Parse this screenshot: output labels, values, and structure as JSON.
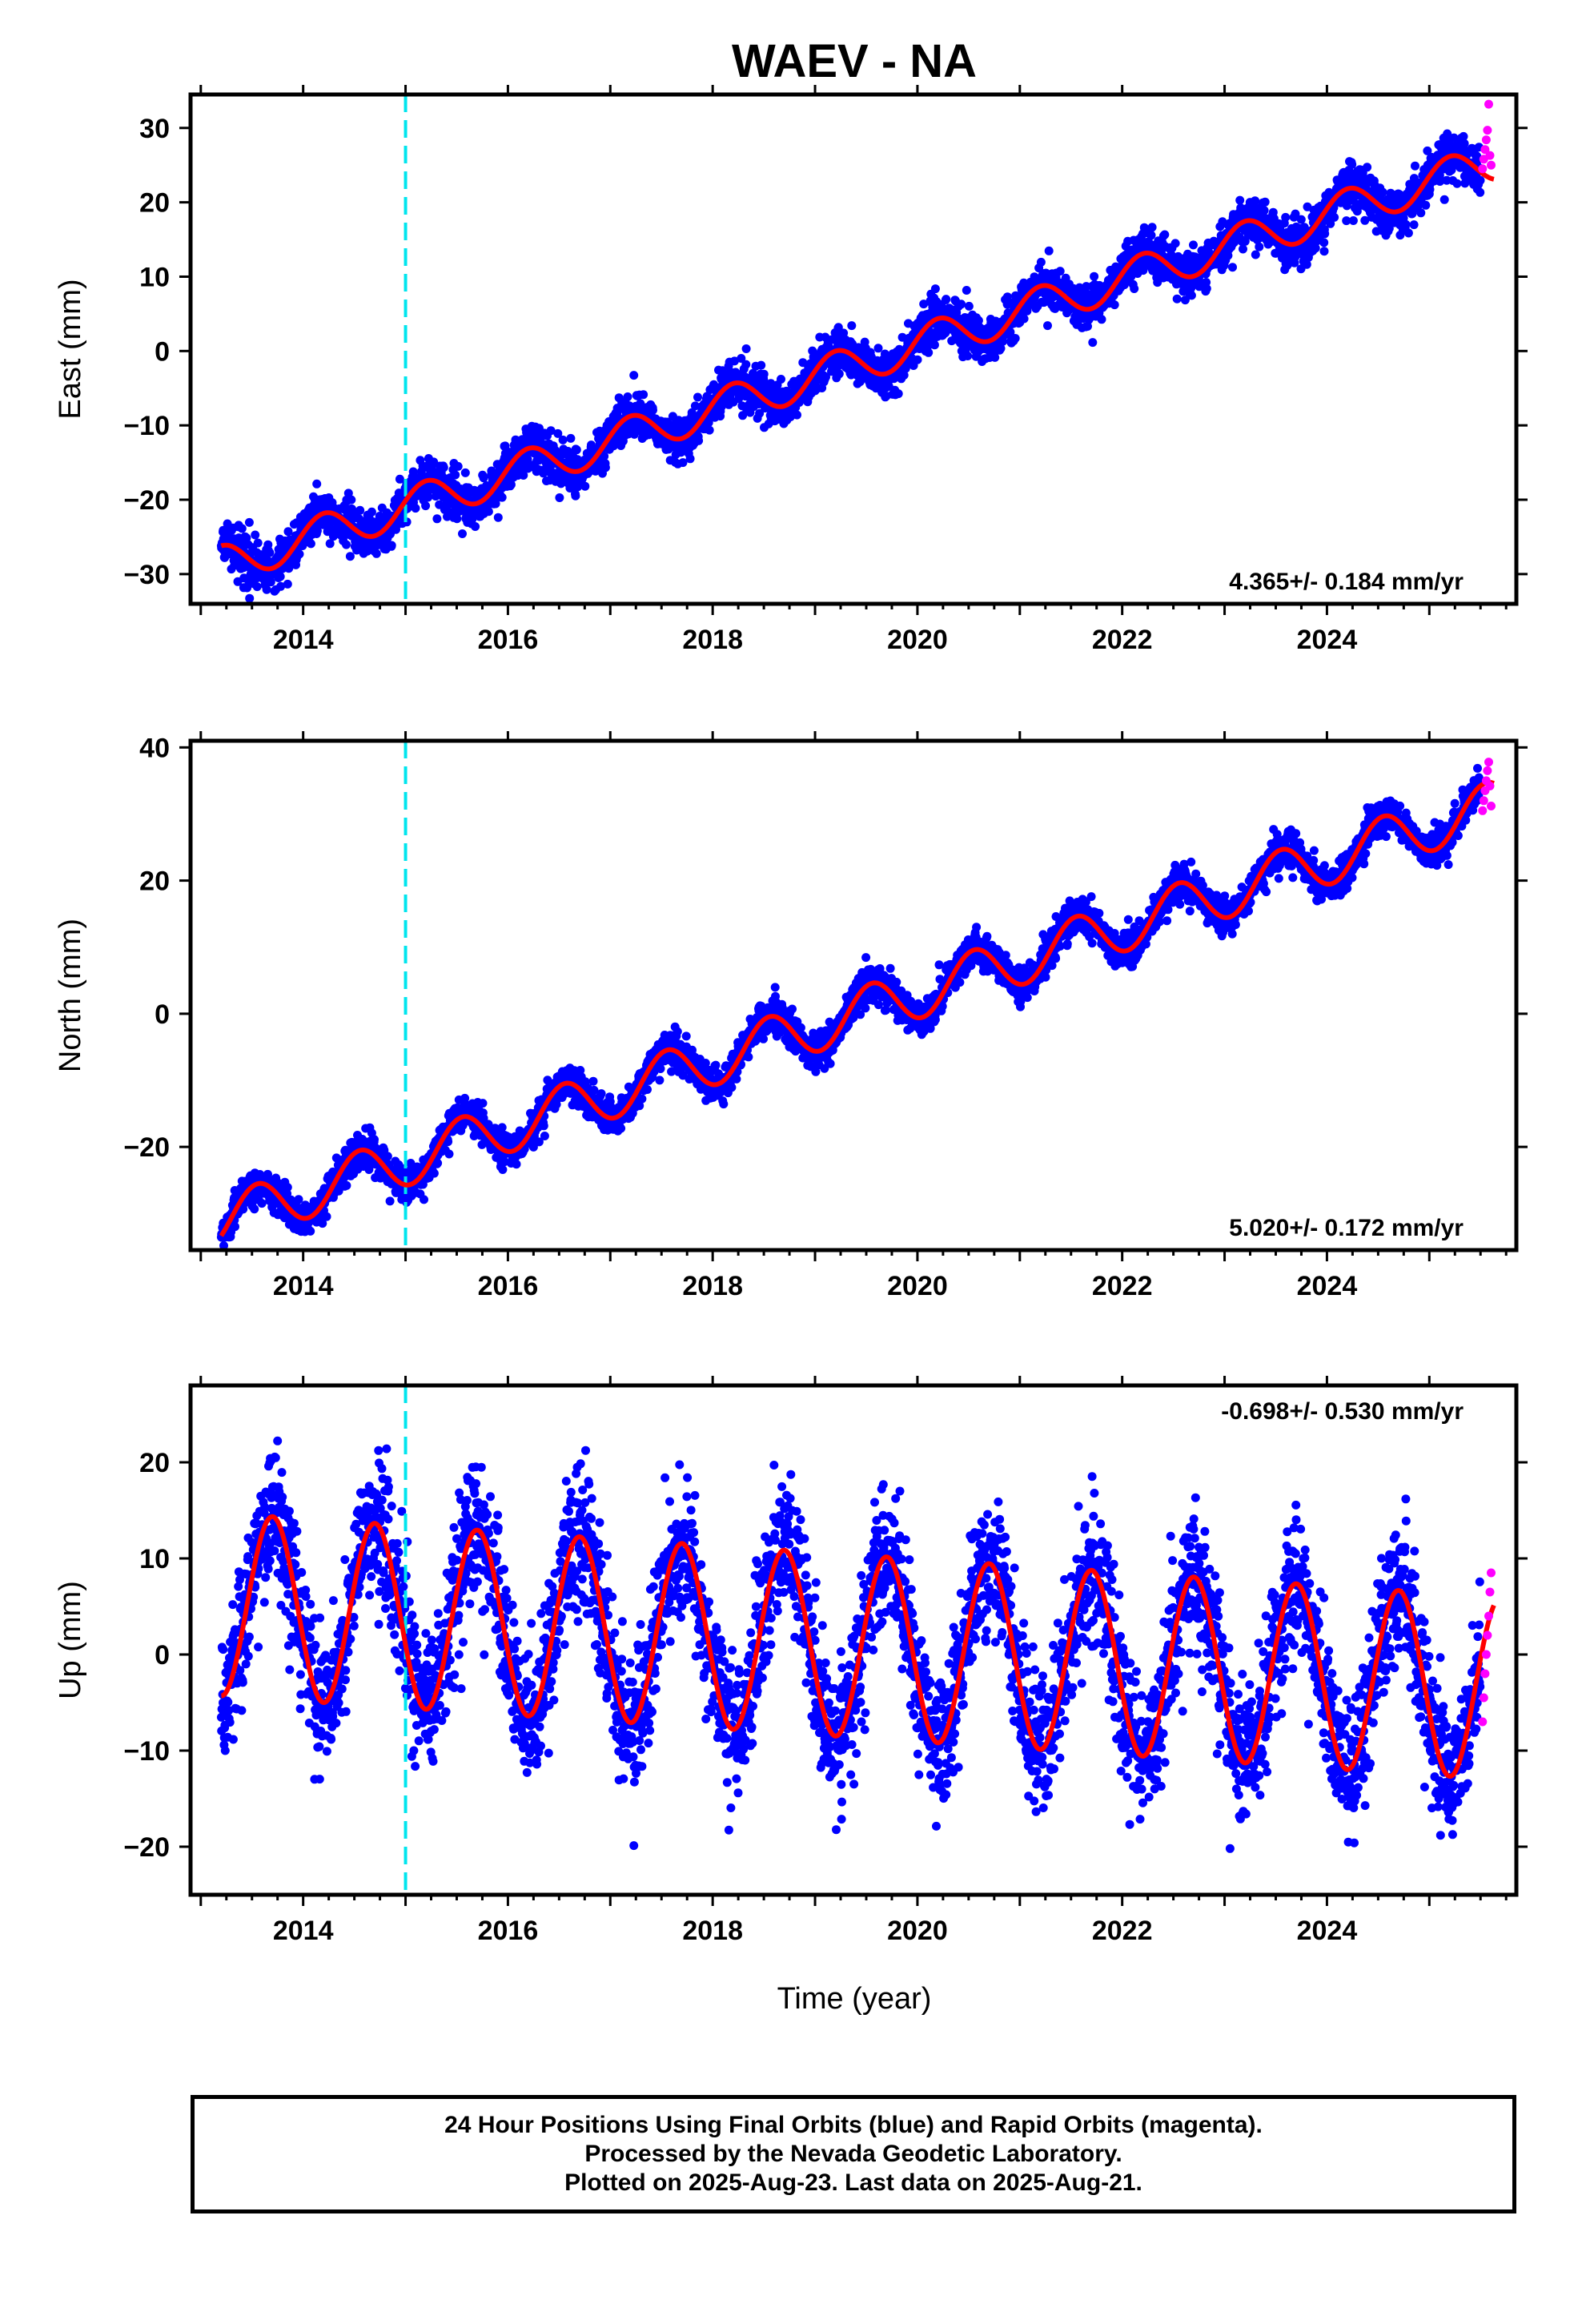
{
  "title": "WAEV - NA",
  "x_label": "Time (year)",
  "colors": {
    "final": "#0000ff",
    "rapid": "#ff00ff",
    "model": "#ff0000",
    "event": "#00e5ee"
  },
  "footer": {
    "line1": "24 Hour Positions Using Final Orbits (blue) and Rapid Orbits (magenta).",
    "line2": "Processed by the Nevada Geodetic Laboratory.",
    "line3": "Plotted on 2025-Aug-23. Last data on 2025-Aug-21."
  },
  "chart_data": [
    {
      "type": "scatter",
      "component": "east",
      "ylabel": "East (mm)",
      "xlabel": "",
      "xlim": [
        2012.9,
        2025.85
      ],
      "ylim": [
        -34,
        34.5
      ],
      "xticks": [
        2014,
        2016,
        2018,
        2020,
        2022,
        2024
      ],
      "yticks": [
        -30,
        -20,
        -10,
        0,
        10,
        20,
        30
      ],
      "rate": "4.365+/- 0.184 mm/yr",
      "rate_position": "bottom-right",
      "start": 2013.2,
      "end_final": 2025.5,
      "end_rapid": 2025.63,
      "vertical_line_x": 2015.0,
      "model": {
        "t0": 2019.5,
        "intercept": -1.3,
        "velocity": 4.365,
        "annual_amplitude": 2.6,
        "annual_peak": 2025.2,
        "offset": 0.0
      },
      "scatter_sd": 1.5,
      "rapid_values": [
        24.5,
        25.8,
        27.1,
        28.4,
        29.7,
        33.2,
        26.3,
        25.0
      ]
    },
    {
      "type": "scatter",
      "component": "north",
      "ylabel": "North (mm)",
      "xlabel": "",
      "xlim": [
        2012.9,
        2025.85
      ],
      "ylim": [
        -35.5,
        41
      ],
      "xticks": [
        2014,
        2016,
        2018,
        2020,
        2022,
        2024
      ],
      "yticks": [
        -20,
        0,
        20,
        40
      ],
      "rate": "5.020+/- 0.172 mm/yr",
      "rate_position": "bottom-right",
      "start": 2013.2,
      "end_final": 2025.5,
      "end_rapid": 2025.63,
      "vertical_line_x": 2015.0,
      "model": {
        "t0": 2019.5,
        "intercept": 0.5,
        "velocity": 5.02,
        "annual_amplitude": 3.8,
        "annual_peak": 2024.55,
        "offset": 0.0
      },
      "scatter_sd": 1.3,
      "rapid_values": [
        30.5,
        32.0,
        33.5,
        35.0,
        36.5,
        37.8,
        34.2,
        31.2
      ]
    },
    {
      "type": "scatter",
      "component": "up",
      "ylabel": "Up (mm)",
      "xlabel": "Time (year)",
      "xlim": [
        2012.9,
        2025.85
      ],
      "ylim": [
        -25,
        28
      ],
      "xticks": [
        2014,
        2016,
        2018,
        2020,
        2022,
        2024
      ],
      "yticks": [
        -20,
        -10,
        0,
        10,
        20
      ],
      "rate": "-0.698+/- 0.530 mm/yr",
      "rate_position": "top-right",
      "start": 2013.2,
      "end_final": 2025.5,
      "end_rapid": 2025.63,
      "vertical_line_x": 2015.0,
      "model": {
        "t0": 2019.5,
        "intercept": 0.8,
        "velocity": -0.698,
        "annual_amplitude": 9.5,
        "annual_peak": 2024.7,
        "offset": 0.0
      },
      "scatter_sd": 3.6,
      "rapid_values": [
        -7.0,
        -4.5,
        -2.0,
        0.0,
        2.0,
        4.0,
        6.5,
        8.5
      ]
    }
  ]
}
